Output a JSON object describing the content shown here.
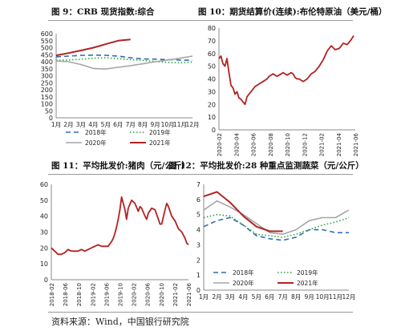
{
  "figures": [
    {
      "title": "图 9：CRB 现货指数:综合"
    },
    {
      "title": "图 10：期货结算价(连续):布伦特原油（美元/桶）"
    },
    {
      "title": "图 11：平均批发价:猪肉（元/公斤）"
    },
    {
      "title": "图 12：平均批发价:28 种重点监测蔬菜（元/公斤）"
    }
  ],
  "source": "资料来源：Wind，中国银行研究院",
  "colors": {
    "s2018": "#2f6db5",
    "s2019": "#2e9e44",
    "s2020": "#a6a6a6",
    "s2021": "#b22222",
    "axis": "#888888"
  },
  "chart_data": [
    {
      "type": "line",
      "title": "",
      "categories": [
        "1月",
        "2月",
        "3月",
        "4月",
        "5月",
        "6月",
        "7月",
        "8月",
        "9月",
        "10月",
        "11月",
        "12月"
      ],
      "ylim": [
        0,
        600
      ],
      "yticks": [
        "0",
        "50",
        "100",
        "150",
        "200",
        "250",
        "300",
        "350",
        "400",
        "450",
        "500",
        "550",
        "600"
      ],
      "legend_position": "bottom",
      "series": [
        {
          "name": "2018年",
          "style": "dashed",
          "values": [
            435,
            440,
            445,
            447,
            446,
            440,
            428,
            420,
            418,
            415,
            412,
            410
          ]
        },
        {
          "name": "2019年",
          "style": "dotted",
          "values": [
            410,
            412,
            418,
            425,
            428,
            422,
            415,
            410,
            402,
            395,
            392,
            398
          ]
        },
        {
          "name": "2020年",
          "style": "solid",
          "values": [
            405,
            400,
            380,
            352,
            348,
            360,
            372,
            385,
            400,
            412,
            425,
            440
          ]
        },
        {
          "name": "2021年",
          "style": "solid",
          "values": [
            445,
            462,
            480,
            500,
            525,
            550,
            558,
            null,
            null,
            null,
            null,
            null
          ]
        }
      ]
    },
    {
      "type": "line",
      "title": "",
      "xlabels": [
        "2020-02",
        "2020-04",
        "2020-06",
        "2020-08",
        "2020-10",
        "2020-12",
        "2021-02",
        "2021-04",
        "2021-06"
      ],
      "ylim": [
        0,
        80
      ],
      "yticks": [
        "0",
        "10",
        "20",
        "30",
        "40",
        "50",
        "60",
        "70",
        "80"
      ],
      "series": [
        {
          "name": "",
          "x": [
            0,
            0.25,
            0.5,
            0.75,
            1,
            1.25,
            1.5,
            1.75,
            2,
            2.25,
            2.5,
            2.75,
            3,
            3.25,
            3.5,
            3.75,
            4,
            4.5,
            5,
            5.5,
            6,
            6.25,
            6.5,
            6.75,
            7,
            7.25,
            7.5,
            7.75,
            8,
            8.25,
            8.5,
            8.75,
            9,
            9.25,
            9.5,
            9.75,
            10,
            10.5,
            11,
            11.5,
            12,
            12.5,
            13,
            13.5,
            14,
            14.5,
            15,
            15.5,
            16,
            16.5,
            16.8
          ],
          "values": [
            56,
            58,
            52,
            50,
            56,
            45,
            35,
            33,
            28,
            30,
            25,
            24,
            22,
            20,
            26,
            28,
            30,
            34,
            36,
            38,
            40,
            42,
            43,
            44,
            43,
            42,
            43,
            44,
            45,
            44,
            43,
            44,
            45,
            44,
            41,
            40,
            40,
            38,
            40,
            44,
            46,
            50,
            55,
            62,
            66,
            63,
            64,
            68,
            67,
            71,
            74
          ]
        }
      ]
    },
    {
      "type": "line",
      "title": "",
      "xlabels": [
        "2018-02",
        "2018-06",
        "2018-10",
        "2019-02",
        "2019-06",
        "2019-10",
        "2020-02",
        "2020-06",
        "2020-10",
        "2021-02",
        "2021-06"
      ],
      "ylim": [
        0,
        60
      ],
      "yticks": [
        "0",
        "10",
        "20",
        "30",
        "40",
        "50",
        "60"
      ],
      "series": [
        {
          "name": "",
          "x": [
            0,
            1,
            2,
            3,
            4,
            5,
            6,
            7,
            8,
            9,
            10,
            11,
            12,
            13,
            14,
            15,
            16,
            17,
            18,
            18.5,
            19,
            19.5,
            20,
            20.5,
            21,
            22,
            22.5,
            23,
            24,
            25,
            26,
            26.5,
            27,
            28,
            28.5,
            29,
            30,
            31,
            32,
            32.5,
            33,
            34,
            34.5,
            35,
            36,
            37,
            38,
            39,
            40,
            40.5,
            41
          ],
          "values": [
            20,
            18,
            16,
            16,
            17,
            19,
            18,
            18,
            18,
            19,
            18,
            19,
            20,
            21,
            22,
            21,
            21,
            21,
            24,
            26,
            29,
            33,
            38,
            44,
            52,
            44,
            38,
            45,
            50,
            48,
            43,
            46,
            45,
            40,
            38,
            42,
            45,
            44,
            38,
            35,
            35,
            44,
            48,
            46,
            40,
            37,
            32,
            30,
            26,
            23,
            22
          ]
        }
      ]
    },
    {
      "type": "line",
      "title": "",
      "categories": [
        "1月",
        "2月",
        "3月",
        "4月",
        "5月",
        "6月",
        "7月",
        "8月",
        "9月",
        "10月",
        "11月",
        "12月"
      ],
      "ylim": [
        0,
        7
      ],
      "yticks": [
        "0",
        "1",
        "2",
        "3",
        "4",
        "5",
        "6",
        "7"
      ],
      "legend_position": "bottom",
      "series": [
        {
          "name": "2018年",
          "style": "dashed",
          "values": [
            4.2,
            4.6,
            4.8,
            4.3,
            3.6,
            3.4,
            3.3,
            3.5,
            4.0,
            4.0,
            3.8,
            3.8
          ]
        },
        {
          "name": "2019年",
          "style": "dotted",
          "values": [
            4.8,
            5.0,
            4.9,
            4.3,
            3.7,
            3.6,
            3.5,
            3.7,
            4.0,
            4.3,
            4.5,
            4.8
          ]
        },
        {
          "name": "2020年",
          "style": "solid",
          "values": [
            5.3,
            5.9,
            5.5,
            5.0,
            4.4,
            3.8,
            3.7,
            4.0,
            4.6,
            4.8,
            4.8,
            5.3
          ]
        },
        {
          "name": "2021年",
          "style": "solid",
          "values": [
            6.2,
            6.5,
            5.8,
            4.9,
            4.2,
            3.9,
            3.9,
            null,
            null,
            null,
            null,
            null
          ]
        }
      ]
    }
  ]
}
